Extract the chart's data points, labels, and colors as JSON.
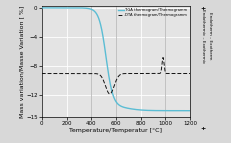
{
  "title": "",
  "xlabel": "Temperature/Temperatur [°C]",
  "ylabel": "Mass variation/Masse Variation [ %]",
  "ylabel_right1": "Endothermic – Exothermic",
  "ylabel_right2": "Endotherm – Exotherm",
  "xlim": [
    0,
    1200
  ],
  "ylim": [
    -15,
    0.3
  ],
  "yticks": [
    0,
    -4,
    -8,
    -12,
    -15
  ],
  "xticks": [
    0,
    200,
    400,
    600,
    800,
    1000,
    1200
  ],
  "tga_color": "#5bbdd4",
  "dta_color": "#111111",
  "bg_color": "#d8d8d8",
  "plot_bg_color": "#e4e4e4",
  "legend_tga": "TGA thermogram/Thermogramm",
  "legend_dta": "DTA thermogram/Thermogramm",
  "grid_color": "#ffffff",
  "vline_positions": [
    400,
    600,
    1000
  ],
  "fontsize": 4.5
}
